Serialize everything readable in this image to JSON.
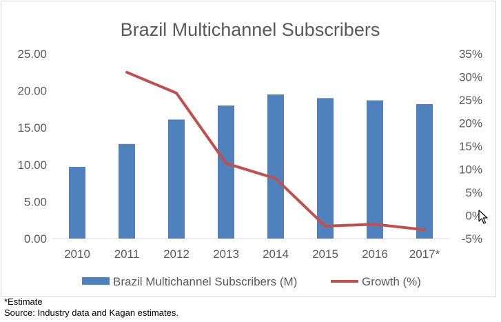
{
  "chart_data": {
    "type": "bar",
    "title": "Brazil Multichannel Subscribers",
    "categories": [
      "2010",
      "2011",
      "2012",
      "2013",
      "2014",
      "2015",
      "2016",
      "2017*"
    ],
    "series": [
      {
        "name": "Brazil Multichannel Subscribers (M)",
        "type": "bar",
        "axis": "left",
        "color": "#4f81bd",
        "values": [
          9.7,
          12.8,
          16.1,
          18.0,
          19.5,
          19.0,
          18.7,
          18.2
        ]
      },
      {
        "name": "Growth (%)",
        "type": "line",
        "axis": "right",
        "color": "#c0504d",
        "values": [
          null,
          31,
          26.5,
          11.3,
          8.0,
          -2.3,
          -1.9,
          -3.1
        ]
      }
    ],
    "y_left": {
      "min": 0,
      "max": 25,
      "step": 5,
      "tick_labels": [
        "0.00",
        "5.00",
        "10.00",
        "15.00",
        "20.00",
        "25.00"
      ]
    },
    "y_right": {
      "min": -5,
      "max": 35,
      "step": 5,
      "tick_labels": [
        "-5%",
        "0%",
        "5%",
        "10%",
        "15%",
        "20%",
        "25%",
        "30%",
        "35%"
      ]
    },
    "xlabel": "",
    "ylabel": "",
    "grid": false,
    "legend": "bottom"
  },
  "footnotes": {
    "estimate": "*Estimate",
    "source": "Source: Industry data and Kagan estimates."
  },
  "icons": {
    "cursor": "mouse-pointer-icon"
  }
}
